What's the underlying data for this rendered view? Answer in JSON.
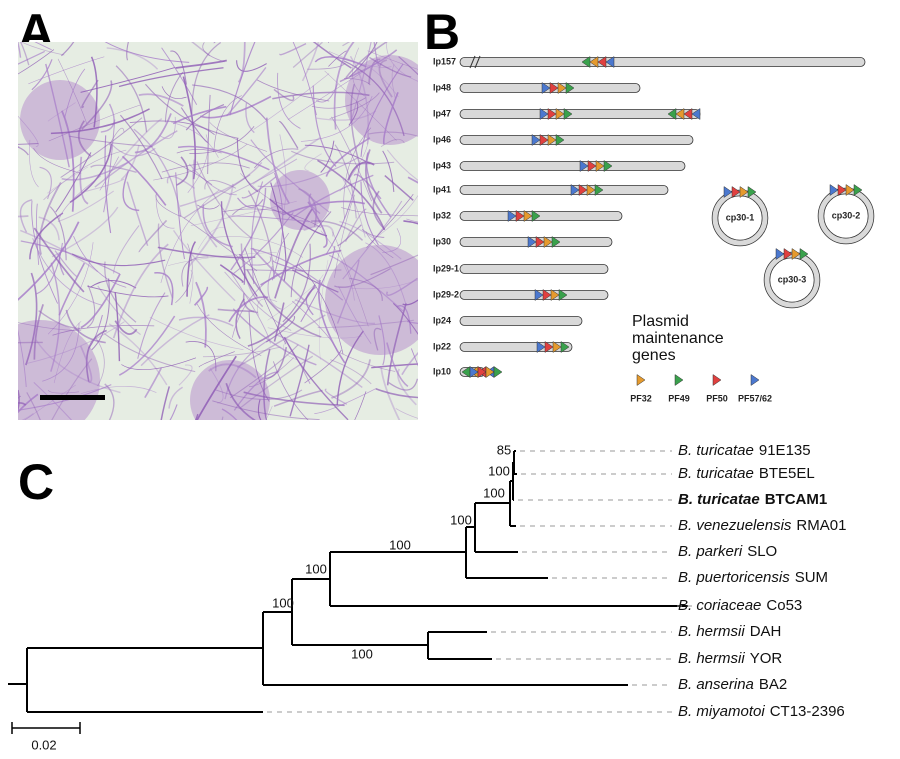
{
  "panels": {
    "a": "A",
    "b": "B",
    "c": "C"
  },
  "plasmids": [
    "lp157",
    "lp48",
    "lp47",
    "lp46",
    "lp43",
    "lp41",
    "lp32",
    "lp30",
    "lp29-1",
    "lp29-2",
    "lp24",
    "lp22",
    "lp10"
  ],
  "circular_plasmids": [
    "cp30-1",
    "cp30-2",
    "cp30-3"
  ],
  "legend": {
    "title": [
      "Plasmid",
      "maintenance",
      "genes"
    ],
    "items": [
      {
        "name": "PF32",
        "color": "#e59a2e"
      },
      {
        "name": "PF49",
        "color": "#3aa14c"
      },
      {
        "name": "PF50",
        "color": "#e0403f"
      },
      {
        "name": "PF57/62",
        "color": "#4b78cf"
      }
    ]
  },
  "tree": {
    "taxa": [
      {
        "species": "B. turicatae",
        "strain": "91E135"
      },
      {
        "species": "B. turicatae",
        "strain": "BTE5EL"
      },
      {
        "species": "B. turicatae",
        "strain": "BTCAM1"
      },
      {
        "species": "B. venezuelensis",
        "strain": "RMA01"
      },
      {
        "species": "B. parkeri",
        "strain": "SLO"
      },
      {
        "species": "B. puertoricensis",
        "strain": "SUM"
      },
      {
        "species": "B. coriaceae",
        "strain": "Co53"
      },
      {
        "species": "B. hermsii",
        "strain": "DAH"
      },
      {
        "species": "B. hermsii",
        "strain": "YOR"
      },
      {
        "species": "B. anserina",
        "strain": "BA2"
      },
      {
        "species": "B. miyamotoi",
        "strain": "CT13-2396"
      }
    ],
    "bootstraps": [
      85,
      100,
      100,
      100,
      100,
      100,
      100,
      100
    ],
    "scale": "0.02"
  }
}
